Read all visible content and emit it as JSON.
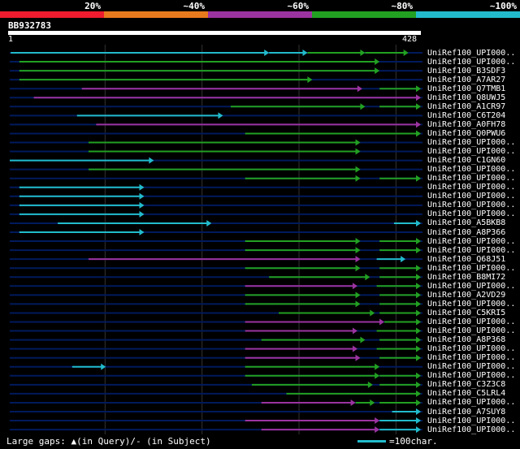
{
  "legend": {
    "segments": [
      {
        "label": "20%",
        "color": "#ee1c2e"
      },
      {
        "label": "~40%",
        "color": "#e87a1e"
      },
      {
        "label": "~60%",
        "color": "#9b33a0"
      },
      {
        "label": "~80%",
        "color": "#22a022"
      },
      {
        "label": "~100%",
        "color": "#22bbcc"
      }
    ]
  },
  "query": {
    "id": "BB932783",
    "start": "1",
    "end": "428",
    "length": 428
  },
  "hits": [
    {
      "label": "UniRef100_UPI000..",
      "segs": [
        [
          1,
          270,
          "cyan"
        ],
        [
          270,
          310,
          "cyan"
        ],
        [
          310,
          370,
          "green"
        ],
        [
          370,
          415,
          "green"
        ]
      ]
    },
    {
      "label": "UniRef100_UPI000..",
      "segs": [
        [
          10,
          385,
          "green"
        ]
      ]
    },
    {
      "label": "UniRef100_B3SDF3",
      "segs": [
        [
          10,
          385,
          "green"
        ]
      ]
    },
    {
      "label": "UniRef100_A7AR27",
      "segs": [
        [
          10,
          315,
          "green"
        ]
      ]
    },
    {
      "label": "UniRef100_Q7TMB1",
      "segs": [
        [
          75,
          367,
          "purple"
        ],
        [
          385,
          428,
          "green"
        ]
      ]
    },
    {
      "label": "UniRef100_Q8UWJ5",
      "segs": [
        [
          25,
          428,
          "purple"
        ]
      ]
    },
    {
      "label": "UniRef100_A1CR97",
      "segs": [
        [
          230,
          370,
          "green"
        ],
        [
          385,
          428,
          "green"
        ]
      ]
    },
    {
      "label": "UniRef100_C6T204",
      "segs": [
        [
          70,
          222,
          "cyan"
        ]
      ]
    },
    {
      "label": "UniRef100_A0FH78",
      "segs": [
        [
          90,
          428,
          "purple"
        ]
      ]
    },
    {
      "label": "UniRef100_Q0PWU6",
      "segs": [
        [
          245,
          428,
          "green"
        ]
      ]
    },
    {
      "label": "UniRef100_UPI000..",
      "segs": [
        [
          82,
          365,
          "green"
        ]
      ]
    },
    {
      "label": "UniRef100_UPI000..",
      "segs": [
        [
          82,
          365,
          "green"
        ]
      ]
    },
    {
      "label": "UniRef100_C1GN60",
      "segs": [
        [
          0,
          150,
          "cyan"
        ]
      ]
    },
    {
      "label": "UniRef100_UPI000..",
      "segs": [
        [
          82,
          365,
          "green"
        ]
      ]
    },
    {
      "label": "UniRef100_UPI000..",
      "segs": [
        [
          245,
          365,
          "green"
        ],
        [
          385,
          428,
          "green"
        ]
      ]
    },
    {
      "label": "UniRef100_UPI000..",
      "segs": [
        [
          10,
          140,
          "cyan"
        ]
      ]
    },
    {
      "label": "UniRef100_UPI000..",
      "segs": [
        [
          10,
          140,
          "cyan"
        ]
      ]
    },
    {
      "label": "UniRef100_UPI000..",
      "segs": [
        [
          10,
          140,
          "cyan"
        ]
      ]
    },
    {
      "label": "UniRef100_UPI000..",
      "segs": [
        [
          10,
          140,
          "cyan"
        ]
      ]
    },
    {
      "label": "UniRef100_A5BKB8",
      "segs": [
        [
          50,
          210,
          "cyan"
        ],
        [
          400,
          428,
          "cyan"
        ]
      ]
    },
    {
      "label": "UniRef100_A8P366",
      "segs": [
        [
          10,
          140,
          "cyan"
        ]
      ]
    },
    {
      "label": "UniRef100_UPI000..",
      "segs": [
        [
          245,
          365,
          "green"
        ],
        [
          385,
          428,
          "green"
        ]
      ]
    },
    {
      "label": "UniRef100_UPI000..",
      "segs": [
        [
          245,
          365,
          "green"
        ],
        [
          385,
          428,
          "green"
        ]
      ]
    },
    {
      "label": "UniRef100_Q68J51",
      "segs": [
        [
          82,
          365,
          "purple"
        ],
        [
          382,
          412,
          "cyan"
        ]
      ]
    },
    {
      "label": "UniRef100_UPI000..",
      "segs": [
        [
          245,
          365,
          "green"
        ],
        [
          385,
          428,
          "green"
        ]
      ]
    },
    {
      "label": "UniRef100_B8MI72",
      "segs": [
        [
          270,
          375,
          "green"
        ],
        [
          385,
          428,
          "green"
        ]
      ]
    },
    {
      "label": "UniRef100_UPI000..",
      "segs": [
        [
          245,
          362,
          "purple"
        ],
        [
          382,
          428,
          "green"
        ]
      ]
    },
    {
      "label": "UniRef100_A2VD29",
      "segs": [
        [
          245,
          365,
          "green"
        ],
        [
          385,
          428,
          "green"
        ]
      ]
    },
    {
      "label": "UniRef100_UPI000..",
      "segs": [
        [
          245,
          365,
          "green"
        ],
        [
          385,
          428,
          "green"
        ]
      ]
    },
    {
      "label": "UniRef100_C5KRI5",
      "segs": [
        [
          280,
          380,
          "green"
        ],
        [
          385,
          428,
          "green"
        ]
      ]
    },
    {
      "label": "UniRef100_UPI000..",
      "segs": [
        [
          245,
          390,
          "purple"
        ],
        [
          390,
          428,
          "green"
        ]
      ]
    },
    {
      "label": "UniRef100_UPI000..",
      "segs": [
        [
          245,
          362,
          "purple"
        ],
        [
          382,
          428,
          "green"
        ]
      ]
    },
    {
      "label": "UniRef100_A8P368",
      "segs": [
        [
          262,
          370,
          "green"
        ],
        [
          385,
          428,
          "green"
        ]
      ]
    },
    {
      "label": "UniRef100_UPI000..",
      "segs": [
        [
          245,
          362,
          "purple"
        ],
        [
          382,
          428,
          "green"
        ]
      ]
    },
    {
      "label": "UniRef100_UPI000..",
      "segs": [
        [
          245,
          365,
          "purple"
        ],
        [
          385,
          428,
          "green"
        ]
      ]
    },
    {
      "label": "UniRef100_UPI000..",
      "segs": [
        [
          65,
          100,
          "cyan"
        ],
        [
          245,
          385,
          "green"
        ]
      ]
    },
    {
      "label": "UniRef100_UPI000..",
      "segs": [
        [
          245,
          385,
          "green"
        ],
        [
          385,
          428,
          "green"
        ]
      ]
    },
    {
      "label": "UniRef100_C3Z3C8",
      "segs": [
        [
          252,
          378,
          "green"
        ],
        [
          385,
          428,
          "green"
        ]
      ]
    },
    {
      "label": "UniRef100_C5LRL4",
      "segs": [
        [
          288,
          428,
          "green"
        ]
      ]
    },
    {
      "label": "UniRef100_UPI000..",
      "segs": [
        [
          262,
          360,
          "purple"
        ],
        [
          360,
          380,
          "green"
        ],
        [
          385,
          428,
          "green"
        ]
      ]
    },
    {
      "label": "UniRef100_A7SUY8",
      "segs": [
        [
          398,
          428,
          "cyan"
        ]
      ]
    },
    {
      "label": "UniRef100_UPI000..",
      "segs": [
        [
          245,
          385,
          "purple"
        ],
        [
          385,
          428,
          "cyan"
        ]
      ]
    },
    {
      "label": "UniRef100_UPI000..",
      "segs": [
        [
          262,
          385,
          "purple"
        ],
        [
          385,
          428,
          "cyan"
        ]
      ]
    }
  ],
  "footer": {
    "gaps_note": "Large gaps: ▲(in Query)/- (in Subject)",
    "scale_note": "=100char."
  },
  "colors": {
    "cyan": "#22bbcc",
    "green": "#22a022",
    "purple": "#9b33a0",
    "lane": "#001a5c",
    "grid": "#333333"
  }
}
